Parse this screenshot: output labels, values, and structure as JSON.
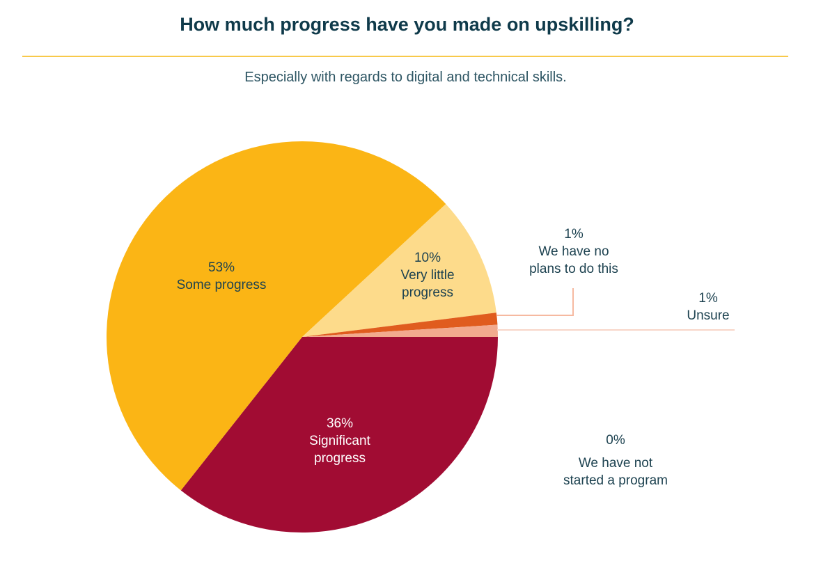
{
  "title": "How much progress have you made on upskilling?",
  "subtitle": "Especially with regards to digital and technical skills.",
  "chart_data": {
    "type": "pie",
    "title": "How much progress have you made on upskilling?",
    "subtitle": "Especially with regards to digital and technical skills.",
    "slices": [
      {
        "label": "Significant progress",
        "value": 36,
        "value_label": "36%",
        "color": "#a10c33"
      },
      {
        "label": "Some progress",
        "value": 53,
        "value_label": "53%",
        "color": "#fbb515"
      },
      {
        "label": "Very little progress",
        "value": 10,
        "value_label": "10%",
        "color": "#fddb8b"
      },
      {
        "label": "We have no plans to do this",
        "value": 1,
        "value_label": "1%",
        "color": "#e05c1e"
      },
      {
        "label": "Unsure",
        "value": 1,
        "value_label": "1%",
        "color": "#f2aa8e"
      },
      {
        "label": "We have not started a program",
        "value": 0,
        "value_label": "0%",
        "color": "#ffffff"
      }
    ],
    "start": "3 o'clock, clockwise",
    "legend": "none (direct labels)"
  },
  "labels": {
    "significant": [
      "36%",
      "Significant",
      "progress"
    ],
    "some": [
      "53%",
      "Some progress"
    ],
    "very_little": [
      "10%",
      "Very little",
      "progress"
    ],
    "no_plans": [
      "1%",
      "We have no",
      "plans to do this"
    ],
    "unsure": [
      "1%",
      "Unsure"
    ],
    "not_started": [
      "0%",
      "We have not",
      "started a program"
    ]
  },
  "colors": {
    "accent_rule": "#f8c94a",
    "text": "#1d4250",
    "leader": "#f6b9a0"
  }
}
